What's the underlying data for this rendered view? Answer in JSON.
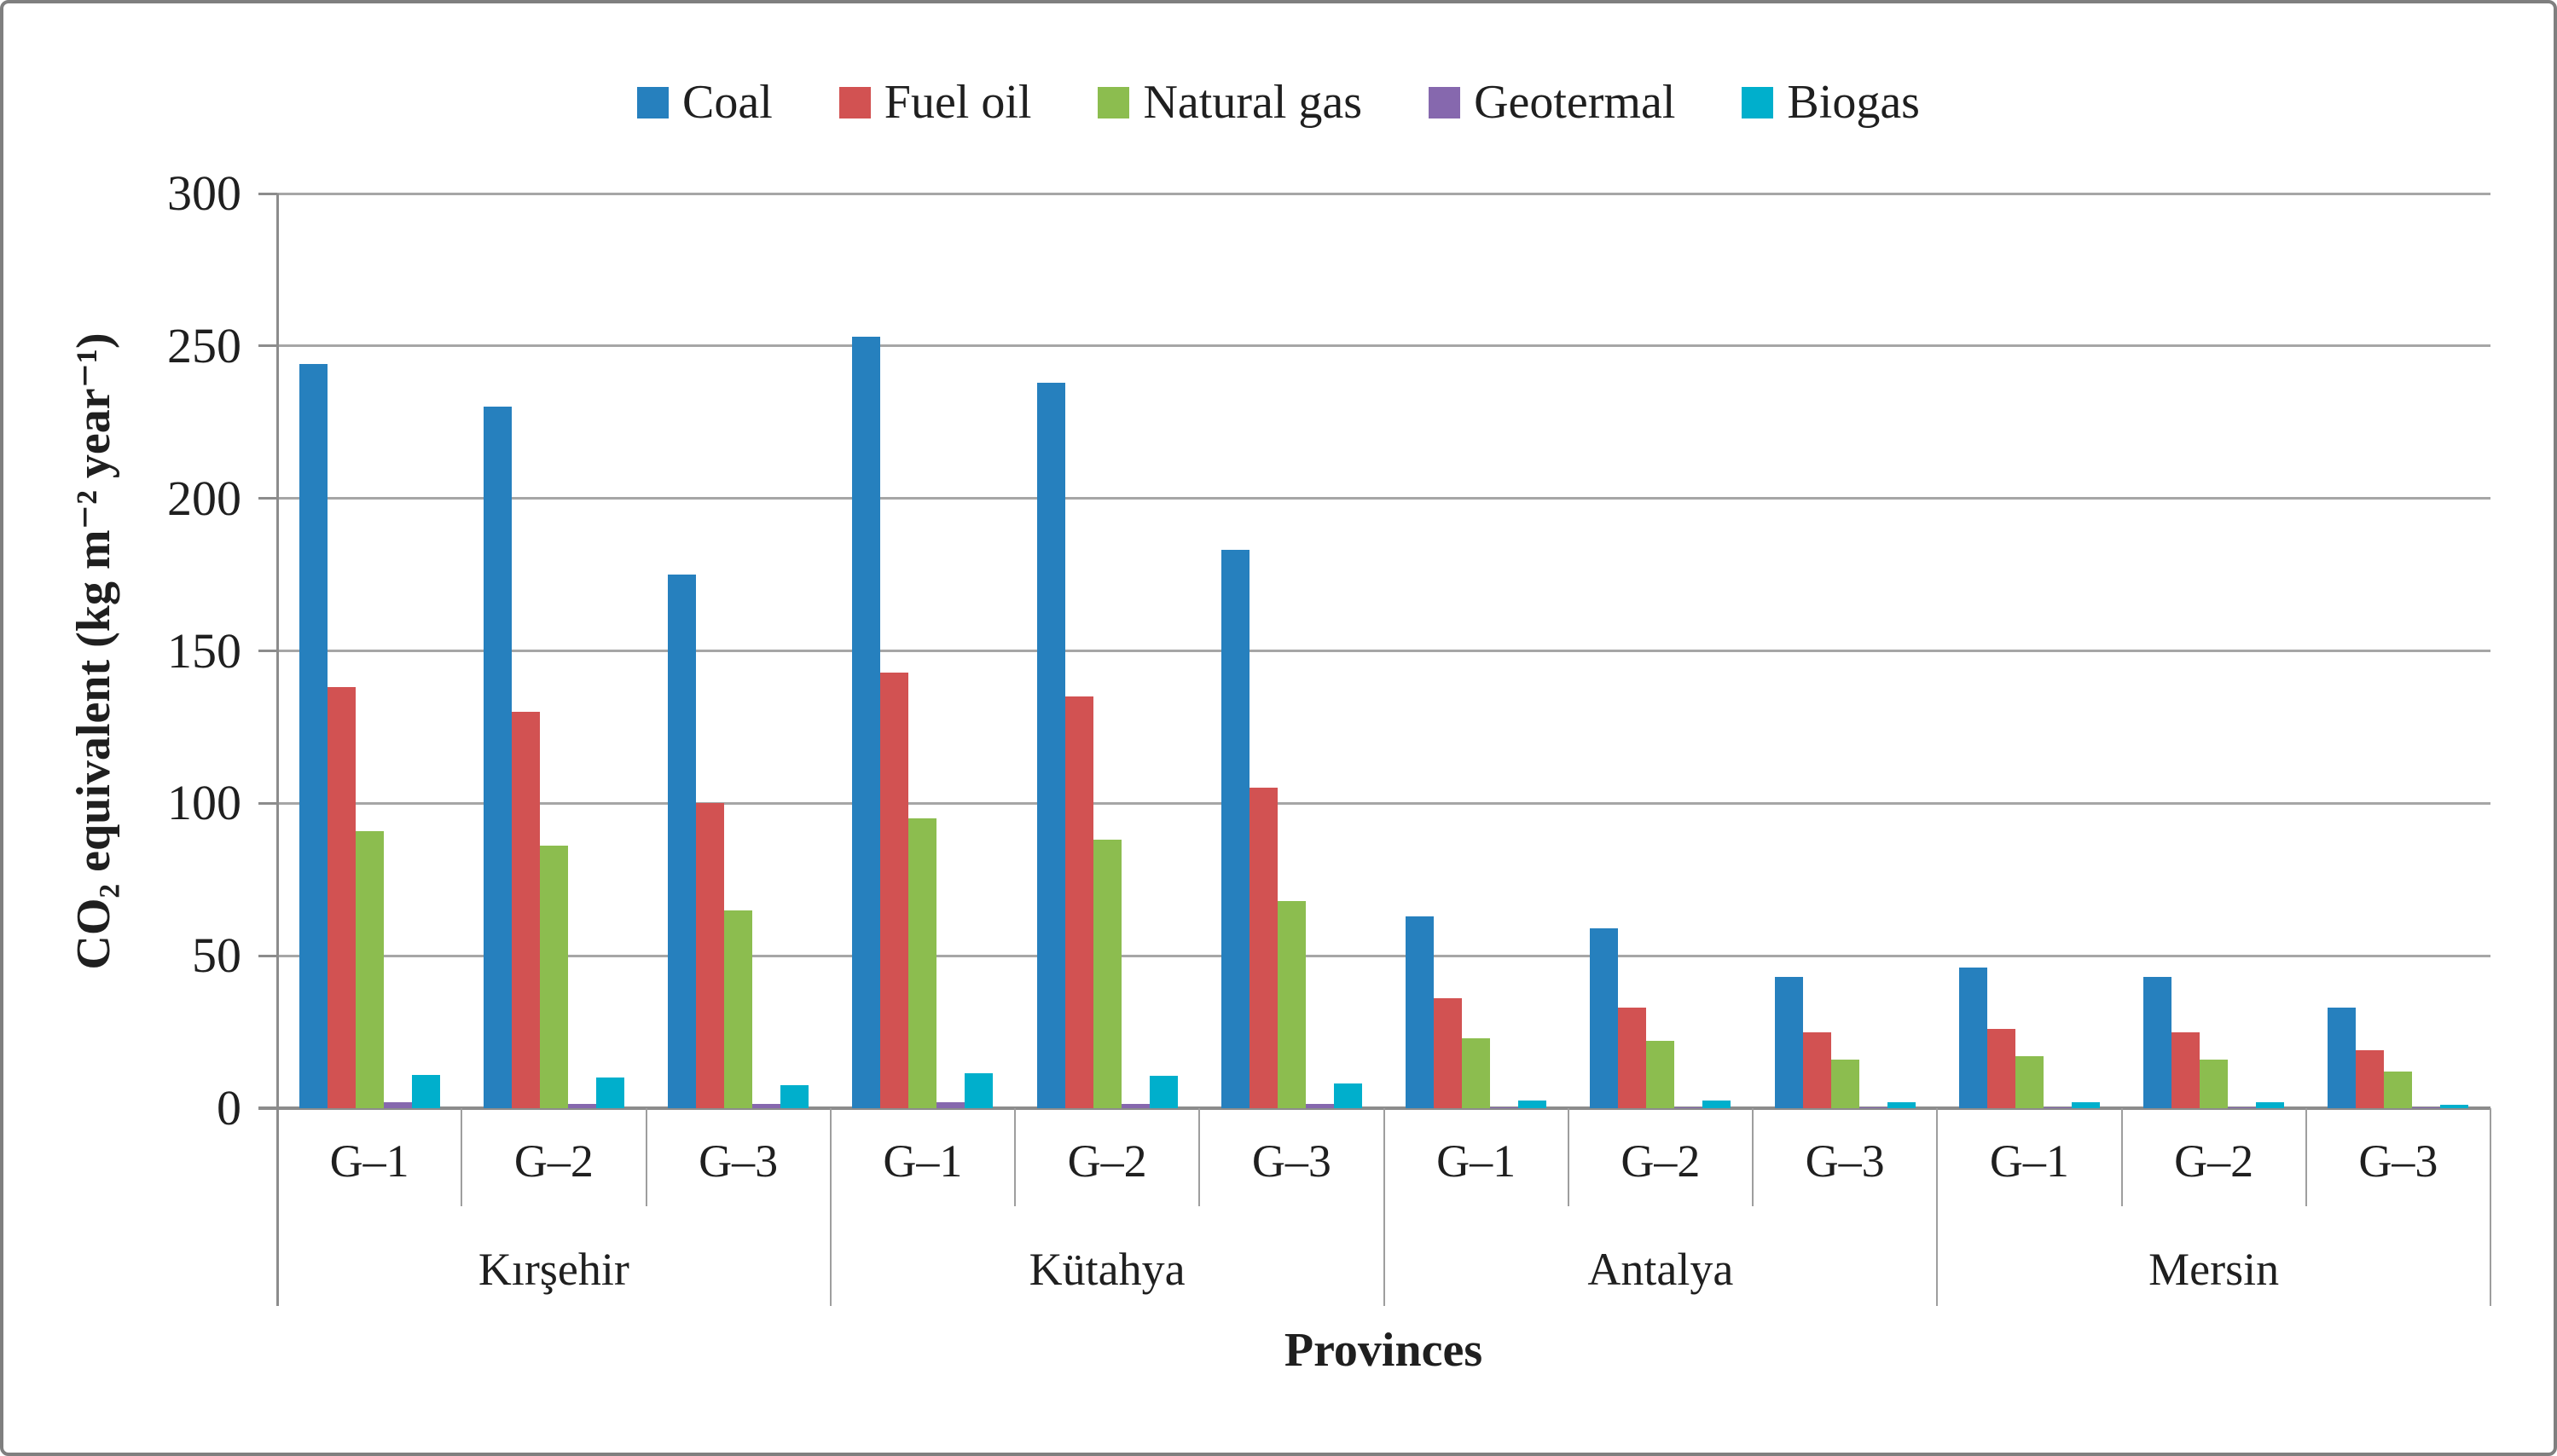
{
  "figure": {
    "background": "#ffffff",
    "border_color": "#7f7f7f",
    "gridline_color": "#a6a6a6",
    "axis_color": "#8c8c8c",
    "text_color": "#1f1f1f"
  },
  "chart_data": {
    "type": "bar",
    "title": "",
    "xlabel": "Provinces",
    "ylabel": "CO₂ equivalent (kg m⁻² year⁻¹)",
    "ylim": [
      0,
      300
    ],
    "yticks": [
      0,
      50,
      100,
      150,
      200,
      250,
      300
    ],
    "grid": "horizontal",
    "legend_position": "top",
    "provinces": [
      "Kırşehir",
      "Kütahya",
      "Antalya",
      "Mersin"
    ],
    "categories_per_province": [
      "G–1",
      "G–2",
      "G–3"
    ],
    "categories": [
      "G–1",
      "G–2",
      "G–3",
      "G–1",
      "G–2",
      "G–3",
      "G–1",
      "G–2",
      "G–3",
      "G–1",
      "G–2",
      "G–3"
    ],
    "series": [
      {
        "name": "Coal",
        "color": "#2680be",
        "values": [
          244,
          230,
          175,
          253,
          238,
          183,
          63,
          59,
          43,
          46,
          43,
          33
        ]
      },
      {
        "name": "Fuel oil",
        "color": "#d25252",
        "values": [
          138,
          130,
          100,
          143,
          135,
          105,
          36,
          33,
          25,
          26,
          25,
          19
        ]
      },
      {
        "name": "Natural gas",
        "color": "#8cbd4f",
        "values": [
          91,
          86,
          65,
          95,
          88,
          68,
          23,
          22,
          16,
          17,
          16,
          12
        ]
      },
      {
        "name": "Geotermal",
        "color": "#8668ae",
        "values": [
          2,
          1.5,
          1.5,
          2,
          1.5,
          1.5,
          0.3,
          0.3,
          0.3,
          0.3,
          0.3,
          0.3
        ]
      },
      {
        "name": "Biogas",
        "color": "#00afcc",
        "values": [
          11,
          10,
          7.5,
          11.5,
          10.5,
          8,
          2.5,
          2.5,
          2,
          2,
          2,
          1
        ]
      }
    ]
  }
}
